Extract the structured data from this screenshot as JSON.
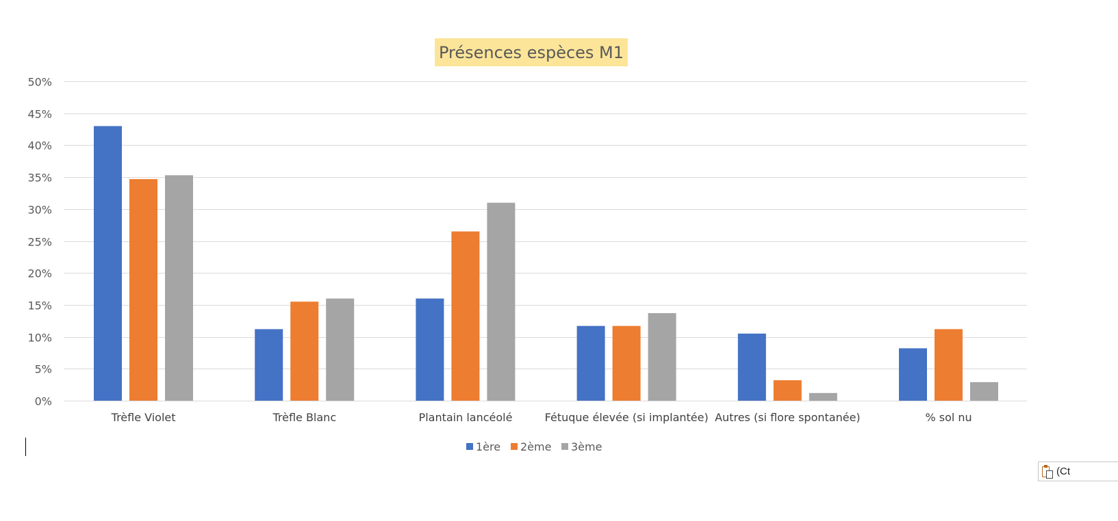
{
  "chart_data": {
    "type": "bar",
    "title": "Présences espèces M1",
    "xlabel": "",
    "ylabel": "",
    "ylim": [
      0,
      0.5
    ],
    "ytick_values": [
      0,
      0.05,
      0.1,
      0.15,
      0.2,
      0.25,
      0.3,
      0.35,
      0.4,
      0.45,
      0.5
    ],
    "ytick_labels": [
      "0%",
      "5%",
      "10%",
      "15%",
      "20%",
      "25%",
      "30%",
      "35%",
      "40%",
      "45%",
      "50%"
    ],
    "categories": [
      "Trèfle Violet",
      "Trèfle Blanc",
      "Plantain lancéolé",
      "Fétuque élevée (si implantée)",
      "Autres (si flore spontanée)",
      "% sol nu"
    ],
    "series": [
      {
        "name": "1ère",
        "color": "#4472c4",
        "values": [
          0.43,
          0.112,
          0.16,
          0.117,
          0.105,
          0.082
        ]
      },
      {
        "name": "2ème",
        "color": "#ed7d31",
        "values": [
          0.347,
          0.155,
          0.265,
          0.117,
          0.032,
          0.112
        ]
      },
      {
        "name": "3ème",
        "color": "#a5a5a5",
        "values": [
          0.353,
          0.16,
          0.31,
          0.137,
          0.012,
          0.029
        ]
      }
    ],
    "grid": true,
    "legend_position": "bottom"
  },
  "paste_options": {
    "label": "(Ct",
    "icon": "paste-clipboard-icon"
  }
}
